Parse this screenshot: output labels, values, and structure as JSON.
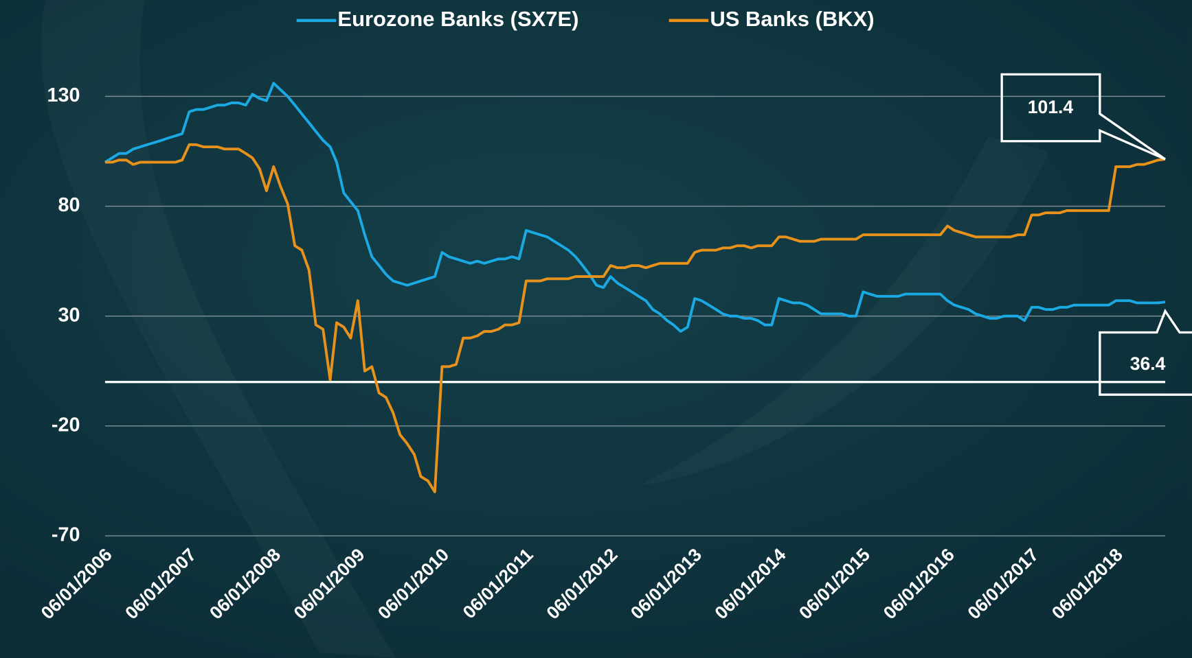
{
  "chart_data": {
    "type": "line",
    "legend": "top",
    "grid": true,
    "ylim": [
      -70,
      140
    ],
    "yticks": [
      -70,
      -20,
      30,
      80,
      130
    ],
    "xlim": [
      "06/01/2006",
      "01/01/2019"
    ],
    "xticks": [
      "06/01/2006",
      "06/01/2007",
      "06/01/2008",
      "06/01/2009",
      "06/01/2010",
      "06/01/2011",
      "06/01/2012",
      "06/01/2013",
      "06/01/2014",
      "06/01/2015",
      "06/01/2016",
      "06/01/2017",
      "06/01/2018"
    ],
    "x": [
      "06/01/2006",
      "07/01/2006",
      "08/01/2006",
      "09/01/2006",
      "10/01/2006",
      "11/01/2006",
      "12/01/2006",
      "01/01/2007",
      "02/01/2007",
      "03/01/2007",
      "04/01/2007",
      "05/01/2007",
      "06/01/2007",
      "07/01/2007",
      "08/01/2007",
      "09/01/2007",
      "10/01/2007",
      "11/01/2007",
      "12/01/2007",
      "01/01/2008",
      "02/01/2008",
      "03/01/2008",
      "04/01/2008",
      "05/01/2008",
      "06/01/2008",
      "07/01/2008",
      "08/01/2008",
      "09/01/2008",
      "10/01/2008",
      "11/01/2008",
      "12/01/2008",
      "01/01/2009",
      "02/01/2009",
      "03/01/2009",
      "04/01/2009",
      "05/01/2009",
      "06/01/2009",
      "07/01/2009",
      "08/01/2009",
      "09/01/2009",
      "10/01/2009",
      "11/01/2009",
      "12/01/2009",
      "01/01/2010",
      "02/01/2010",
      "03/01/2010",
      "04/01/2010",
      "05/01/2010",
      "06/01/2010",
      "07/01/2010",
      "08/01/2010",
      "09/01/2010",
      "10/01/2010",
      "11/01/2010",
      "12/01/2010",
      "01/01/2011",
      "02/01/2011",
      "03/01/2011",
      "04/01/2011",
      "05/01/2011",
      "06/01/2011",
      "07/01/2011",
      "08/01/2011",
      "09/01/2011",
      "10/01/2011",
      "11/01/2011",
      "12/01/2011",
      "01/01/2012",
      "02/01/2012",
      "03/01/2012",
      "04/01/2012",
      "05/01/2012",
      "06/01/2012",
      "07/01/2012",
      "08/01/2012",
      "09/01/2012",
      "10/01/2012",
      "11/01/2012",
      "12/01/2012",
      "01/01/2013",
      "02/01/2013",
      "03/01/2013",
      "04/01/2013",
      "05/01/2013",
      "06/01/2013",
      "07/01/2013",
      "08/01/2013",
      "09/01/2013",
      "10/01/2013",
      "11/01/2013",
      "12/01/2013",
      "01/01/2014",
      "02/01/2014",
      "03/01/2014",
      "04/01/2014",
      "05/01/2014",
      "06/01/2014",
      "07/01/2014",
      "08/01/2014",
      "09/01/2014",
      "10/01/2014",
      "11/01/2014",
      "12/01/2014",
      "01/01/2015",
      "02/01/2015",
      "03/01/2015",
      "04/01/2015",
      "05/01/2015",
      "06/01/2015",
      "07/01/2015",
      "08/01/2015",
      "09/01/2015",
      "10/01/2015",
      "11/01/2015",
      "12/01/2015",
      "01/01/2016",
      "02/01/2016",
      "03/01/2016",
      "04/01/2016",
      "05/01/2016",
      "06/01/2016",
      "07/01/2016",
      "08/01/2016",
      "09/01/2016",
      "10/01/2016",
      "11/01/2016",
      "12/01/2016",
      "01/01/2017",
      "02/01/2017",
      "03/01/2017",
      "04/01/2017",
      "05/01/2017",
      "06/01/2017",
      "07/01/2017",
      "08/01/2017",
      "09/01/2017",
      "10/01/2017",
      "11/01/2017",
      "12/01/2017",
      "01/01/2018",
      "02/01/2018",
      "03/01/2018",
      "04/01/2018",
      "05/01/2018",
      "06/01/2018",
      "07/01/2018",
      "08/01/2018",
      "09/01/2018",
      "10/01/2018",
      "11/01/2018",
      "12/01/2018",
      "01/01/2019"
    ],
    "series": [
      {
        "name": "Eurozone Banks (SX7E)",
        "color": "#1ba9e3",
        "values": [
          100,
          102,
          104,
          104,
          106,
          107,
          108,
          109,
          110,
          111,
          112,
          113,
          123,
          124,
          124,
          125,
          126,
          126,
          127,
          127,
          126,
          131,
          129,
          128,
          136,
          133,
          130,
          126,
          122,
          118,
          114,
          110,
          107,
          100,
          86,
          82,
          78,
          67,
          57,
          53,
          49,
          46,
          45,
          44,
          45,
          46,
          47,
          48,
          59,
          57,
          56,
          55,
          54,
          55,
          54,
          55,
          56,
          56,
          57,
          56,
          69,
          68,
          67,
          66,
          64,
          62,
          60,
          57,
          53,
          49,
          44,
          43,
          48,
          45,
          43,
          41,
          39,
          37,
          33,
          31,
          28,
          26,
          23,
          25,
          38,
          37,
          35,
          33,
          31,
          30,
          30,
          29,
          29,
          28,
          26,
          26,
          38,
          37,
          36,
          36,
          35,
          33,
          31,
          31,
          31,
          31,
          30,
          30,
          41,
          40,
          39,
          39,
          39,
          39,
          40,
          40,
          40,
          40,
          40,
          40,
          37,
          35,
          34,
          33,
          31,
          30,
          29,
          29,
          30,
          30,
          30,
          28,
          34,
          34,
          33,
          33,
          34,
          34,
          35,
          35,
          35,
          35,
          35,
          35,
          37,
          37,
          37,
          36,
          36,
          36,
          36,
          36.4
        ]
      },
      {
        "name": "US Banks (BKX)",
        "color": "#e8921c",
        "values": [
          100,
          100,
          101,
          101,
          99,
          100,
          100,
          100,
          100,
          100,
          100,
          101,
          108,
          108,
          107,
          107,
          107,
          106,
          106,
          106,
          104,
          102,
          97,
          87,
          98,
          89,
          81,
          62,
          60,
          51,
          26,
          24,
          1,
          27,
          25,
          20,
          37,
          5,
          7,
          -5,
          -7,
          -14,
          -24,
          -28,
          -33,
          -43,
          -45,
          -50,
          7,
          7,
          8,
          20,
          20,
          21,
          23,
          23,
          24,
          26,
          26,
          27,
          46,
          46,
          46,
          47,
          47,
          47,
          47,
          48,
          48,
          48,
          48,
          48,
          53,
          52,
          52,
          53,
          53,
          52,
          53,
          54,
          54,
          54,
          54,
          54,
          59,
          60,
          60,
          60,
          61,
          61,
          62,
          62,
          61,
          62,
          62,
          62,
          66,
          66,
          65,
          64,
          64,
          64,
          65,
          65,
          65,
          65,
          65,
          65,
          67,
          67,
          67,
          67,
          67,
          67,
          67,
          67,
          67,
          67,
          67,
          67,
          71,
          69,
          68,
          67,
          66,
          66,
          66,
          66,
          66,
          66,
          67,
          67,
          76,
          76,
          77,
          77,
          77,
          78,
          78,
          78,
          78,
          78,
          78,
          78,
          98,
          98,
          98,
          99,
          99,
          100,
          101,
          101.4
        ]
      }
    ]
  }
}
